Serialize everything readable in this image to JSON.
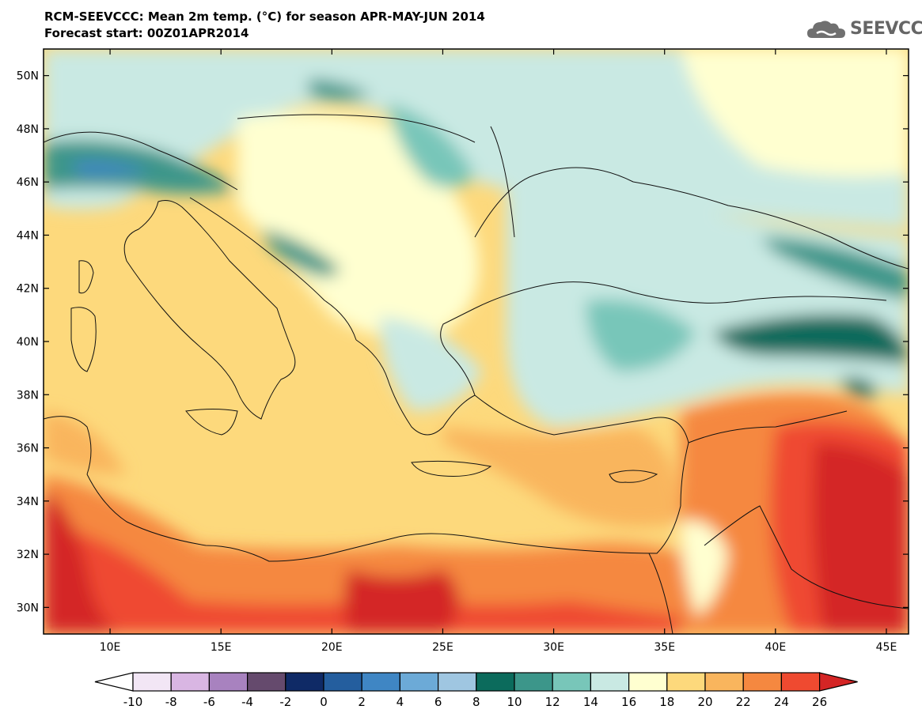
{
  "title": {
    "line1": "RCM-SEEVCCC: Mean 2m temp. (°C) for season APR-MAY-JUN 2014",
    "line2": "Forecast start: 00Z01APR2014"
  },
  "logo": {
    "text": "SEEVCCC",
    "icon": "cloud-icon"
  },
  "map": {
    "lat_labels": [
      "50N",
      "48N",
      "46N",
      "44N",
      "42N",
      "40N",
      "38N",
      "36N",
      "34N",
      "32N",
      "30N"
    ],
    "lon_labels": [
      "10E",
      "15E",
      "20E",
      "25E",
      "30E",
      "35E",
      "40E",
      "45E"
    ],
    "lon_range": [
      7,
      46
    ],
    "lat_range": [
      29,
      51
    ]
  },
  "legend": {
    "ticks": [
      "-10",
      "-8",
      "-6",
      "-4",
      "-2",
      "0",
      "2",
      "4",
      "6",
      "8",
      "10",
      "12",
      "14",
      "16",
      "18",
      "20",
      "22",
      "24",
      "26"
    ],
    "low_color": "#ffffff",
    "high_color": "#d42525",
    "colors": [
      "#f2e6f5",
      "#d9b6e3",
      "#a882bf",
      "#654a6d",
      "#0f2a66",
      "#245e9e",
      "#3f86c4",
      "#6caad7",
      "#9fc6e1",
      "#0b6b5c",
      "#3c968a",
      "#78c6b9",
      "#c9e9e3",
      "#ffffd0",
      "#fdd97c",
      "#f9b55d",
      "#f58840",
      "#ef4a30"
    ]
  }
}
